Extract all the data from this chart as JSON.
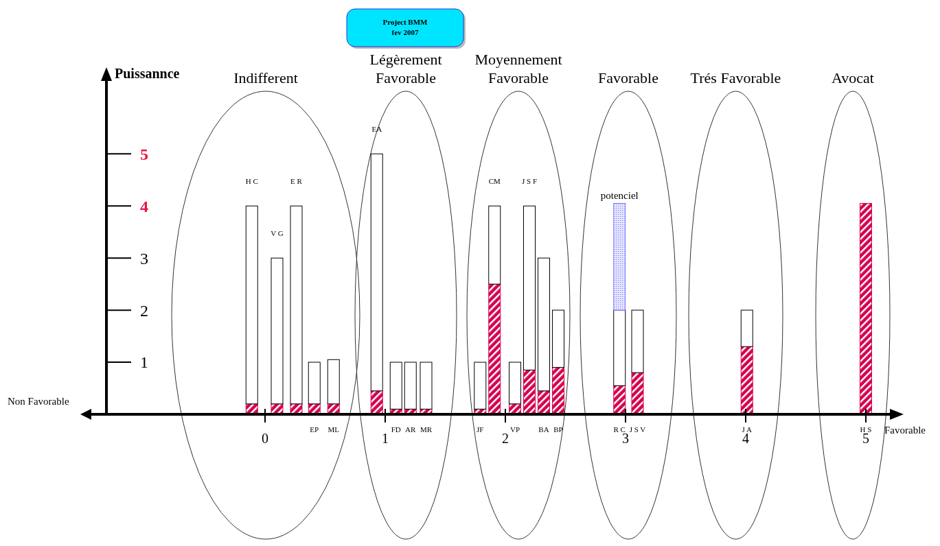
{
  "chart_data": {
    "type": "bar",
    "title": "Project BMM\nfev 2007",
    "ylabel": "Puissannce",
    "xlabel": "Favorable",
    "stacked": true,
    "x": [
      -0.11,
      0.1,
      0.26,
      0.41,
      0.57,
      0.93,
      1.09,
      1.21,
      1.34,
      1.79,
      1.91,
      2.08,
      2.2,
      2.32,
      2.44,
      2.95,
      3.1,
      4.01,
      5
    ],
    "series": [
      {
        "color": "#d4004f",
        "values": [
          0.2,
          0.2,
          0.2,
          0.2,
          0.2,
          0.45,
          0.1,
          0.1,
          0.1,
          0.1,
          2.5,
          0.2,
          0.85,
          0.45,
          0.9,
          0.55,
          0.8,
          1.3,
          4.05
        ]
      },
      {
        "color": "#ffffff",
        "values": [
          3.8,
          2.8,
          3.8,
          0.8,
          0.85,
          4.55,
          0.9,
          0.9,
          0.9,
          0.9,
          1.5,
          0.8,
          3.15,
          2.55,
          1.1,
          1.45,
          1.2,
          0.7,
          0
        ]
      },
      {
        "name": "potenciel",
        "color": "#8080ff",
        "values": [
          null,
          null,
          null,
          null,
          null,
          null,
          null,
          null,
          null,
          null,
          null,
          null,
          null,
          null,
          null,
          2.05,
          null,
          null,
          null
        ]
      }
    ],
    "xlim": [
      -1.32,
      5.2
    ],
    "xticks": [
      0,
      1,
      2,
      3,
      4,
      5
    ],
    "ylim": [
      0,
      6.4
    ],
    "yticks": [
      1,
      2,
      3,
      4,
      5
    ],
    "annotations": [
      "Non Favorable",
      "Indifferent",
      "Légèrement\nFavorable",
      "Moyennement\nFavorable",
      "Favorable",
      "Trés Favorable",
      "Avocat",
      {
        "text": "H C",
        "x": -0.11,
        "y": 4
      },
      {
        "text": "V G",
        "x": 0.1,
        "y": 3
      },
      {
        "text": "E R",
        "x": 0.26,
        "y": 4
      },
      {
        "text": "EP",
        "x": 0.41,
        "y": 0
      },
      {
        "text": "ML",
        "x": 0.57,
        "y": 0
      },
      {
        "text": "EA",
        "x": 0.93,
        "y": 5
      },
      {
        "text": "FD",
        "x": 1.09,
        "y": 0
      },
      {
        "text": "AR",
        "x": 1.21,
        "y": 0
      },
      {
        "text": "MR",
        "x": 1.34,
        "y": 0
      },
      {
        "text": "JF",
        "x": 1.79,
        "y": 0
      },
      {
        "text": "CM",
        "x": 1.91,
        "y": 4
      },
      {
        "text": "VP",
        "x": 2.08,
        "y": 0
      },
      {
        "text": "J S F",
        "x": 2.2,
        "y": 4
      },
      {
        "text": "BA",
        "x": 2.32,
        "y": 0
      },
      {
        "text": "BP",
        "x": 2.44,
        "y": 0
      },
      {
        "text": "R C",
        "x": 2.95,
        "y": 0
      },
      {
        "text": "J S V",
        "x": 3.1,
        "y": 0
      },
      {
        "text": "J A",
        "x": 4.01,
        "y": 0
      },
      {
        "text": "H S",
        "x": 5,
        "y": 0
      }
    ]
  }
}
